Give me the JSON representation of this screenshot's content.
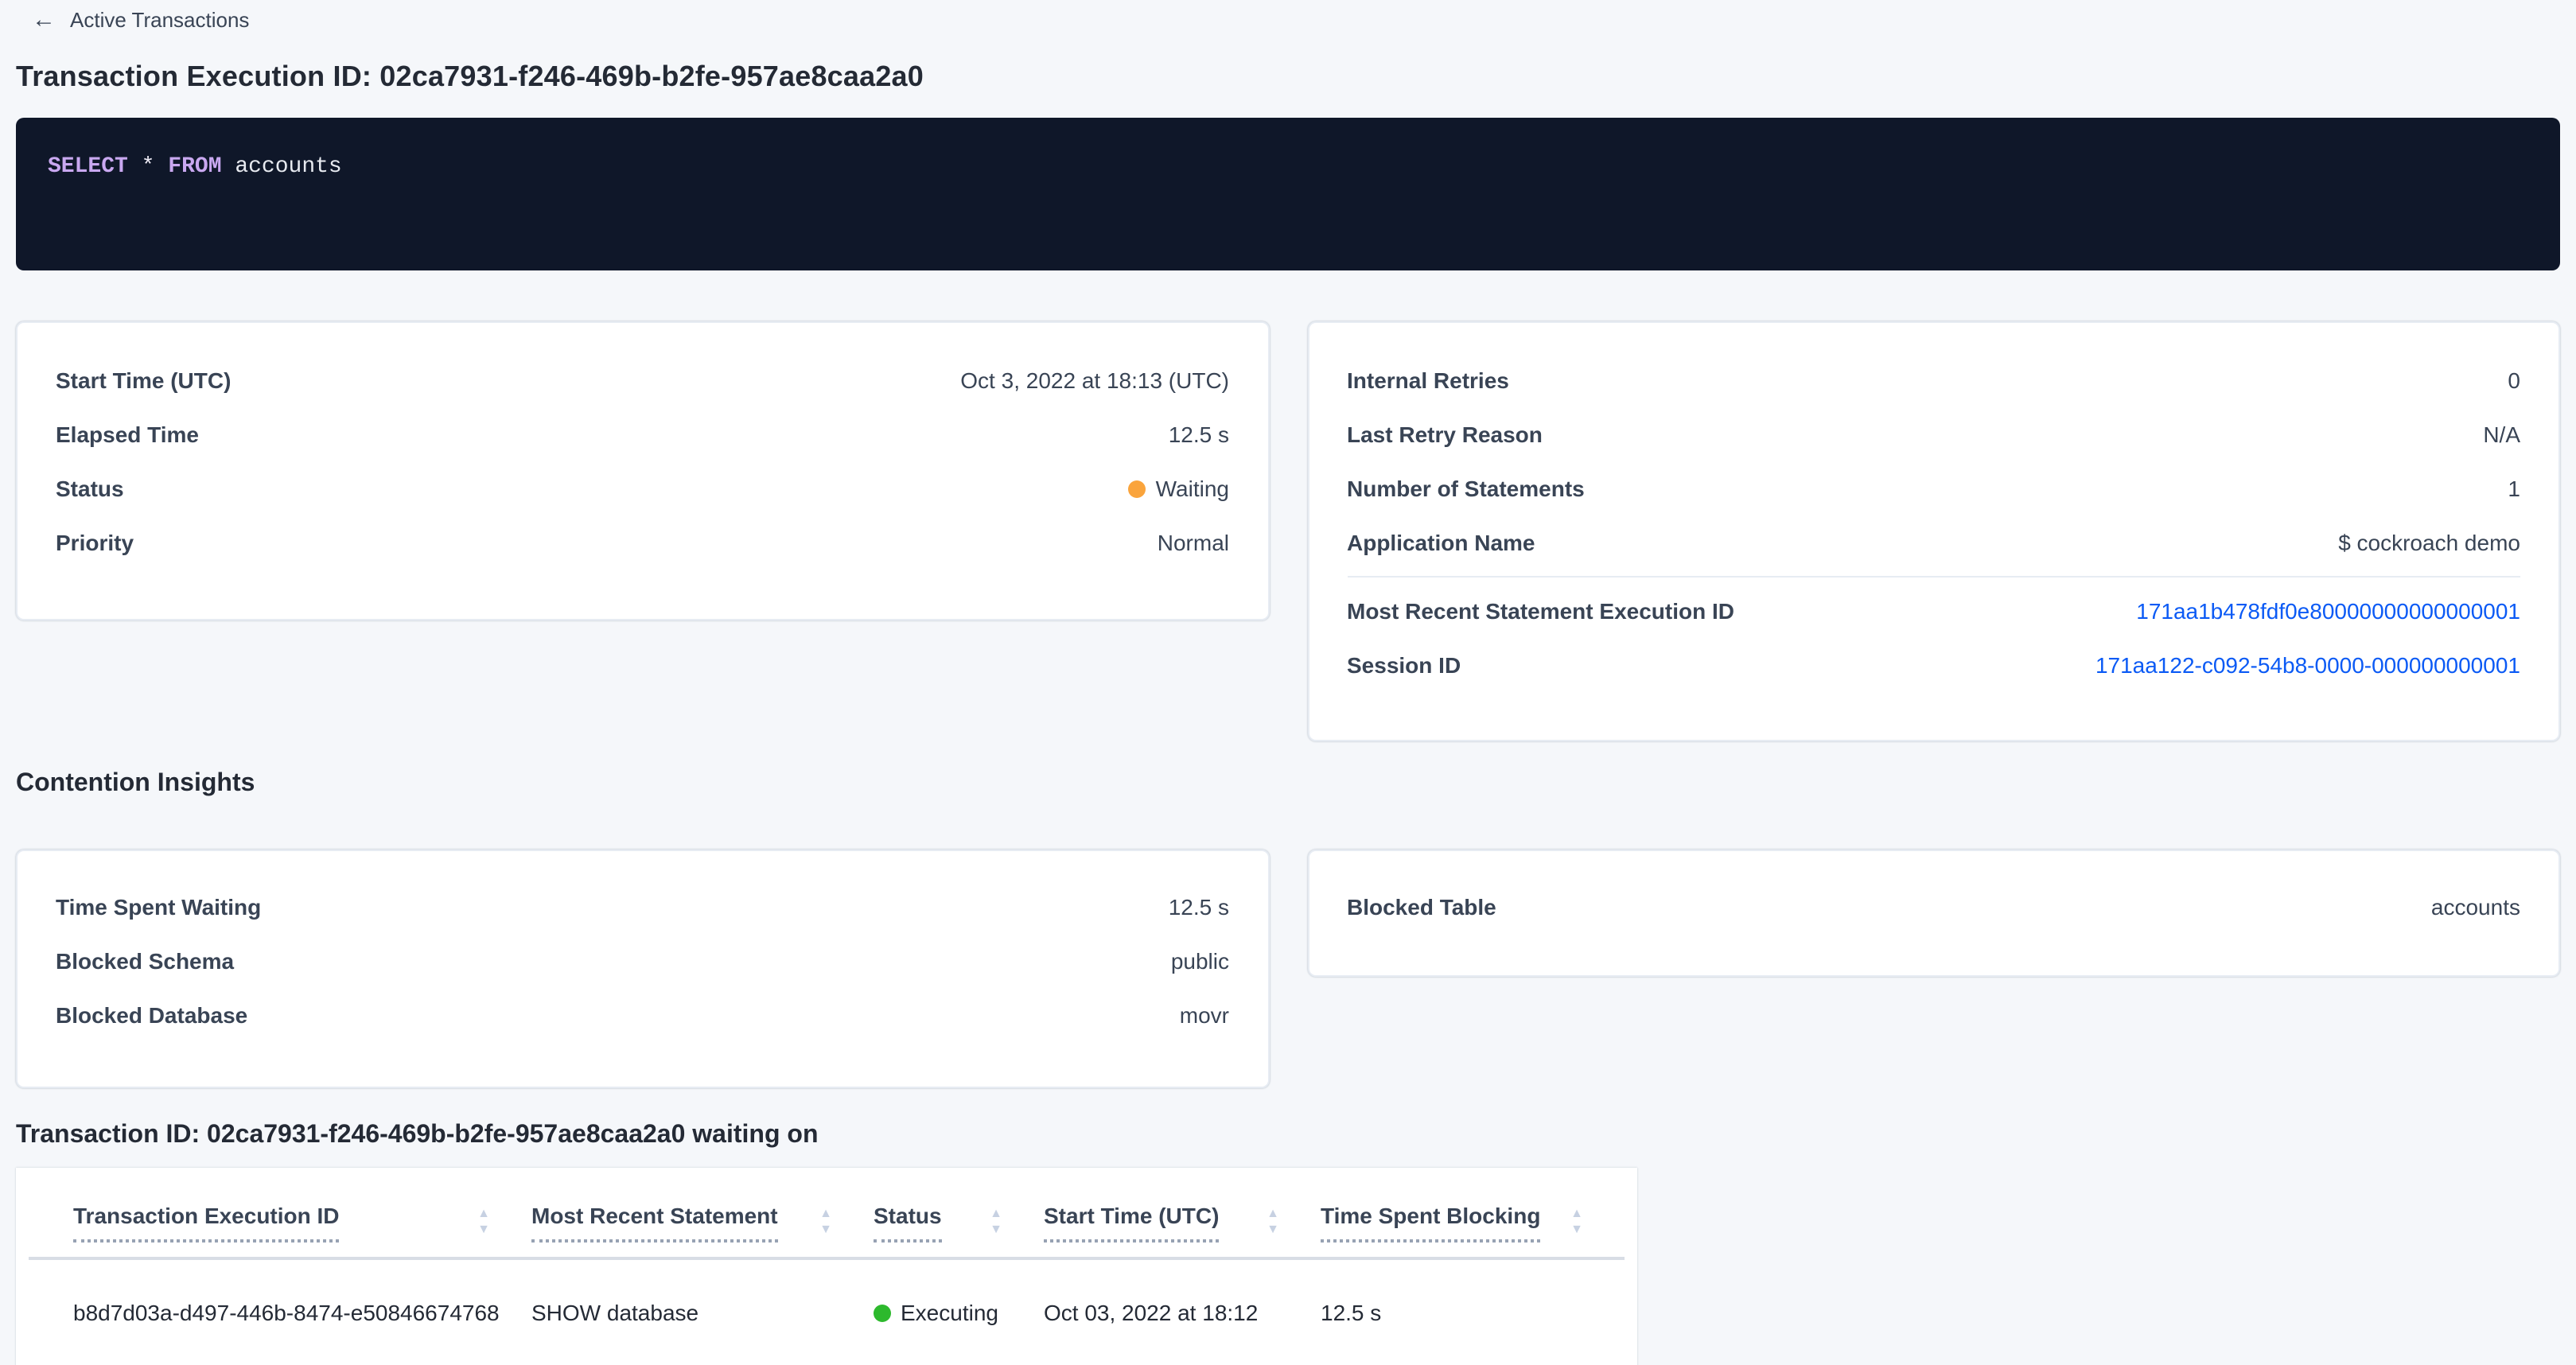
{
  "colors": {
    "link_blue": "#0b5af5",
    "status_waiting_dot": "#faa43c",
    "status_executing_dot": "#2db92d",
    "sql_background": "#0f1729",
    "sql_keyword": "#c9a8f0",
    "page_background": "#f5f7fa"
  },
  "icons": {
    "back_arrow_glyph": "←",
    "sort_asc_glyph": "▲",
    "sort_desc_glyph": "▼"
  },
  "breadcrumb": {
    "label": "Active Transactions"
  },
  "title": "Transaction Execution ID: 02ca7931-f246-469b-b2fe-957ae8caa2a0",
  "sql": {
    "keyword_select": "SELECT",
    "star": "*",
    "keyword_from": "FROM",
    "table_name": "accounts",
    "full_statement": "SELECT * FROM accounts"
  },
  "overview": {
    "left": {
      "rows": [
        {
          "label": "Start Time (UTC)",
          "value": "Oct 3, 2022 at 18:13 (UTC)"
        },
        {
          "label": "Elapsed Time",
          "value": "12.5 s"
        },
        {
          "label": "Status",
          "value": "Waiting"
        },
        {
          "label": "Priority",
          "value": "Normal"
        }
      ]
    },
    "right": {
      "rows": [
        {
          "label": "Internal Retries",
          "value": "0"
        },
        {
          "label": "Last Retry Reason",
          "value": "N/A"
        },
        {
          "label": "Number of Statements",
          "value": "1"
        },
        {
          "label": "Application Name",
          "value": "$ cockroach demo"
        }
      ],
      "links": [
        {
          "label": "Most Recent Statement Execution ID",
          "value": "171aa1b478fdf0e80000000000000001"
        },
        {
          "label": "Session ID",
          "value": "171aa122-c092-54b8-0000-000000000001"
        }
      ]
    }
  },
  "contention": {
    "heading": "Contention Insights",
    "left": {
      "rows": [
        {
          "label": "Time Spent Waiting",
          "value": "12.5 s"
        },
        {
          "label": "Blocked Schema",
          "value": "public"
        },
        {
          "label": "Blocked Database",
          "value": "movr"
        }
      ]
    },
    "right": {
      "rows": [
        {
          "label": "Blocked Table",
          "value": "accounts"
        }
      ]
    }
  },
  "waiting_table": {
    "heading": "Transaction ID: 02ca7931-f246-469b-b2fe-957ae8caa2a0 waiting on",
    "columns": [
      "Transaction Execution ID",
      "Most Recent Statement",
      "Status",
      "Start Time (UTC)",
      "Time Spent Blocking"
    ],
    "rows": [
      {
        "transaction_execution_id": "b8d7d03a-d497-446b-8474-e50846674768",
        "most_recent_statement": "SHOW database",
        "status": "Executing",
        "start_time": "Oct 03, 2022 at 18:12",
        "time_spent_blocking": "12.5 s"
      }
    ]
  }
}
